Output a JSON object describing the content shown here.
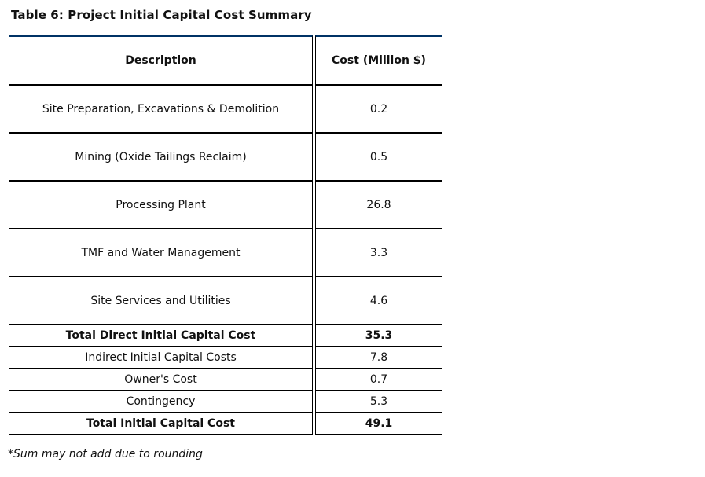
{
  "page": {
    "title": "Table 6: Project Initial Capital Cost Summary",
    "footnote": "*Sum may not add due to rounding"
  },
  "table": {
    "columns": [
      "Description",
      "Cost (Million $)"
    ],
    "headers": {
      "description": "Description",
      "cost": "Cost (Million $)"
    },
    "rows": [
      {
        "description": "Site Preparation, Excavations & Demolition",
        "cost": "0.2",
        "emphasis": "normal"
      },
      {
        "description": "Mining (Oxide Tailings Reclaim)",
        "cost": "0.5",
        "emphasis": "normal"
      },
      {
        "description": "Processing Plant",
        "cost": "26.8",
        "emphasis": "normal"
      },
      {
        "description": "TMF and Water Management",
        "cost": "3.3",
        "emphasis": "normal"
      },
      {
        "description": "Site Services and Utilities",
        "cost": "4.6",
        "emphasis": "normal"
      },
      {
        "description": "Total Direct Initial Capital Cost",
        "cost": "35.3",
        "emphasis": "bold"
      },
      {
        "description": "Indirect Initial Capital Costs",
        "cost": "7.8",
        "emphasis": "normal"
      },
      {
        "description": "Owner's Cost",
        "cost": "0.7",
        "emphasis": "normal"
      },
      {
        "description": "Contingency",
        "cost": "5.3",
        "emphasis": "normal"
      },
      {
        "description": "Total Initial Capital Cost",
        "cost": "49.1",
        "emphasis": "bold"
      }
    ],
    "colors": {
      "border": "#000000",
      "top_border": "#003366",
      "text": "#111111",
      "background": "#ffffff"
    }
  }
}
